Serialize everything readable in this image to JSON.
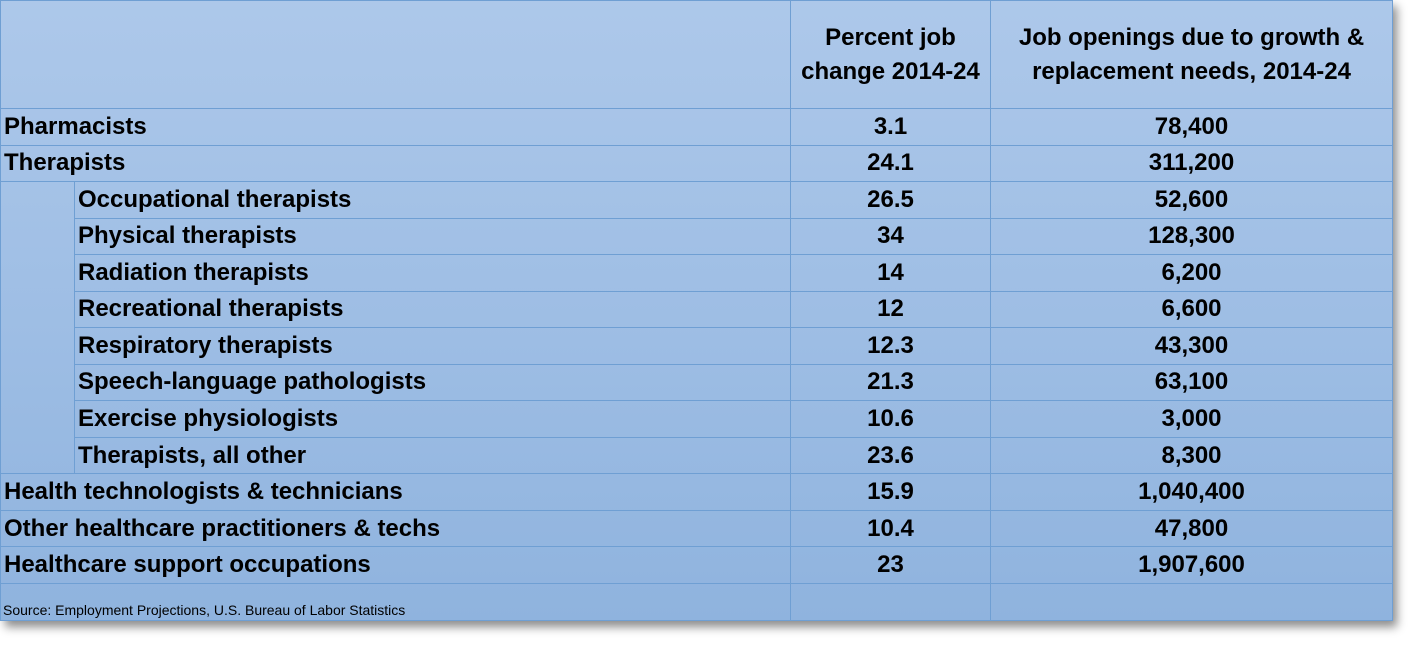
{
  "chart_data": {
    "type": "table",
    "columns": [
      "",
      "Percent job change 2014-24",
      "Job openings due to growth & replacement needs, 2014-24"
    ],
    "header_lines": {
      "pct": [
        "Percent job",
        "change 2014-24"
      ],
      "openings": [
        "Job openings due to growth &",
        "replacement needs, 2014-24"
      ]
    },
    "rows": [
      {
        "occupation": "Pharmacists",
        "indent": false,
        "percent_change": "3.1",
        "openings": "78,400"
      },
      {
        "occupation": "Therapists",
        "indent": false,
        "percent_change": "24.1",
        "openings": "311,200"
      },
      {
        "occupation": "Occupational therapists",
        "indent": true,
        "percent_change": "26.5",
        "openings": "52,600"
      },
      {
        "occupation": "Physical therapists",
        "indent": true,
        "percent_change": "34",
        "openings": "128,300"
      },
      {
        "occupation": "Radiation therapists",
        "indent": true,
        "percent_change": "14",
        "openings": "6,200"
      },
      {
        "occupation": "Recreational therapists",
        "indent": true,
        "percent_change": "12",
        "openings": "6,600"
      },
      {
        "occupation": "Respiratory therapists",
        "indent": true,
        "percent_change": "12.3",
        "openings": "43,300"
      },
      {
        "occupation": "Speech-language pathologists",
        "indent": true,
        "percent_change": "21.3",
        "openings": "63,100"
      },
      {
        "occupation": "Exercise physiologists",
        "indent": true,
        "percent_change": "10.6",
        "openings": "3,000"
      },
      {
        "occupation": "Therapists, all other",
        "indent": true,
        "percent_change": "23.6",
        "openings": "8,300"
      },
      {
        "occupation": "Health technologists & technicians",
        "indent": false,
        "percent_change": "15.9",
        "openings": "1,040,400"
      },
      {
        "occupation": "Other healthcare practitioners & techs",
        "indent": false,
        "percent_change": "10.4",
        "openings": "47,800"
      },
      {
        "occupation": "Healthcare support occupations",
        "indent": false,
        "percent_change": "23",
        "openings": "1,907,600"
      }
    ],
    "source": "Source: Employment Projections, U.S. Bureau of Labor Statistics"
  },
  "colors": {
    "background_top": "#adc8ea",
    "background_bottom": "#8fb3de",
    "grid": "#6f9fd3",
    "text": "#000000"
  }
}
